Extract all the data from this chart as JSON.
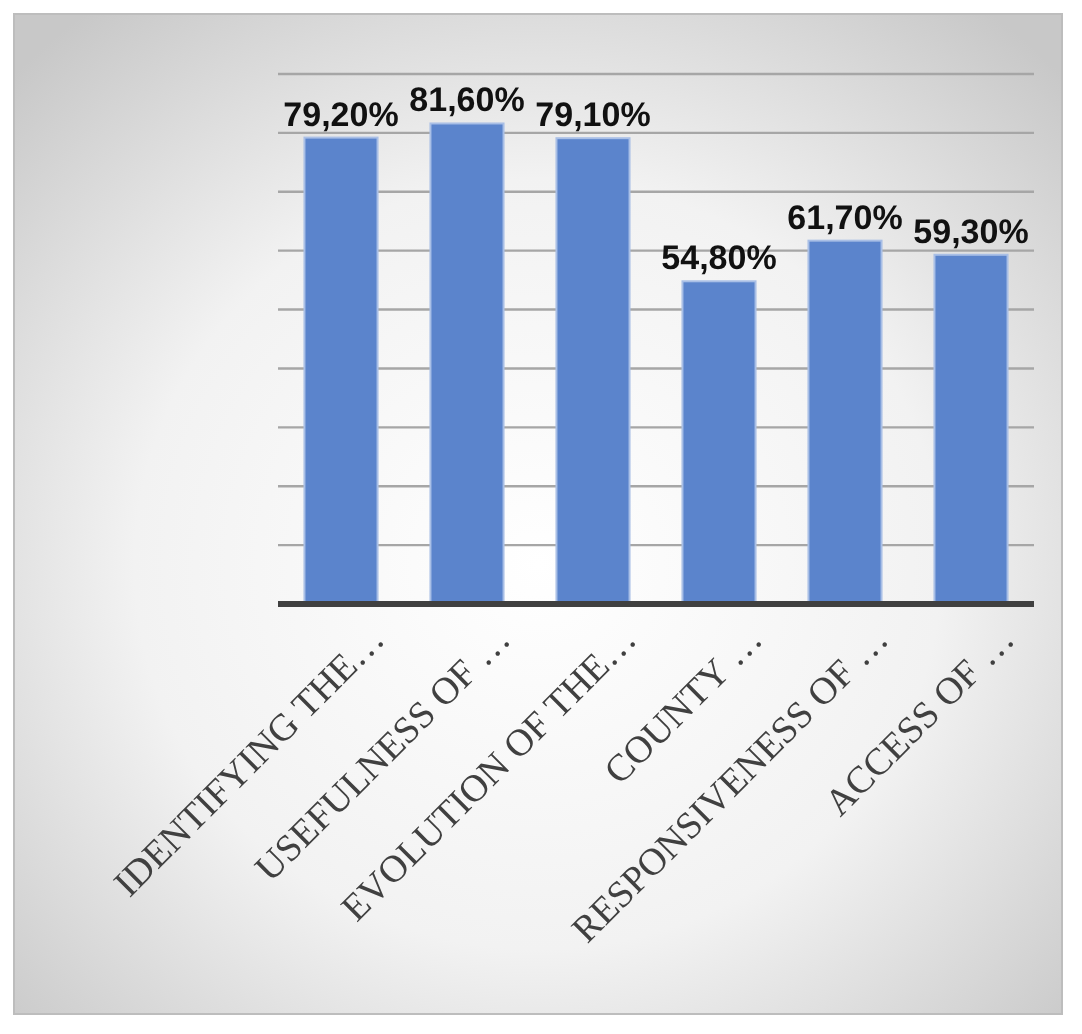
{
  "chart_data": {
    "type": "bar",
    "categories": [
      "IDENTIFYING THE…",
      "USEFULNESS OF …",
      "EVOLUTION OF THE…",
      "COUNTY …",
      "RESPONSIVENESS OF …",
      "ACCESS OF …"
    ],
    "values": [
      79.2,
      81.6,
      79.1,
      54.8,
      61.7,
      59.3
    ],
    "value_labels": [
      "79,20%",
      "81,60%",
      "79,10%",
      "54,80%",
      "61,70%",
      "59,30%"
    ],
    "color": "#5b84cc",
    "ylim": [
      0,
      90
    ],
    "yticks": [
      {
        "value": 0,
        "label": null
      },
      {
        "value": 10,
        "label": null
      },
      {
        "value": 20,
        "label": null
      },
      {
        "value": 30,
        "label": null
      },
      {
        "value": 40,
        "label": null
      },
      {
        "value": 50,
        "label": null
      },
      {
        "value": 60,
        "label": null
      },
      {
        "value": 70,
        "label": null
      },
      {
        "value": 80,
        "label": null
      },
      {
        "value": 90,
        "label": null
      }
    ],
    "grid": "y"
  }
}
